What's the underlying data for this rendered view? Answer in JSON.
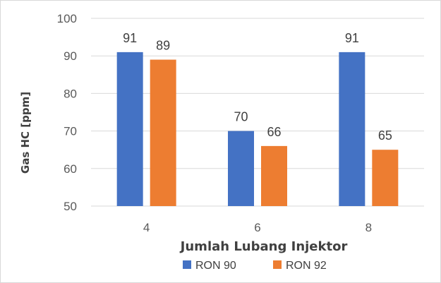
{
  "chart_data": {
    "type": "bar",
    "categories": [
      "4",
      "6",
      "8"
    ],
    "series": [
      {
        "name": "RON 90",
        "values": [
          91,
          70,
          91
        ],
        "color": "#4472C4"
      },
      {
        "name": "RON 92",
        "values": [
          89,
          66,
          65
        ],
        "color": "#ED7D31"
      }
    ],
    "title": "",
    "xlabel": "Jumlah Lubang Injektor",
    "ylabel": "Gas HC [ppm]",
    "ylim": [
      50,
      100
    ],
    "yticks": [
      "50",
      "60",
      "70",
      "80",
      "90",
      "100"
    ],
    "grid": true,
    "gridColor": "#d9d9d9",
    "legend": "bottom-center"
  }
}
